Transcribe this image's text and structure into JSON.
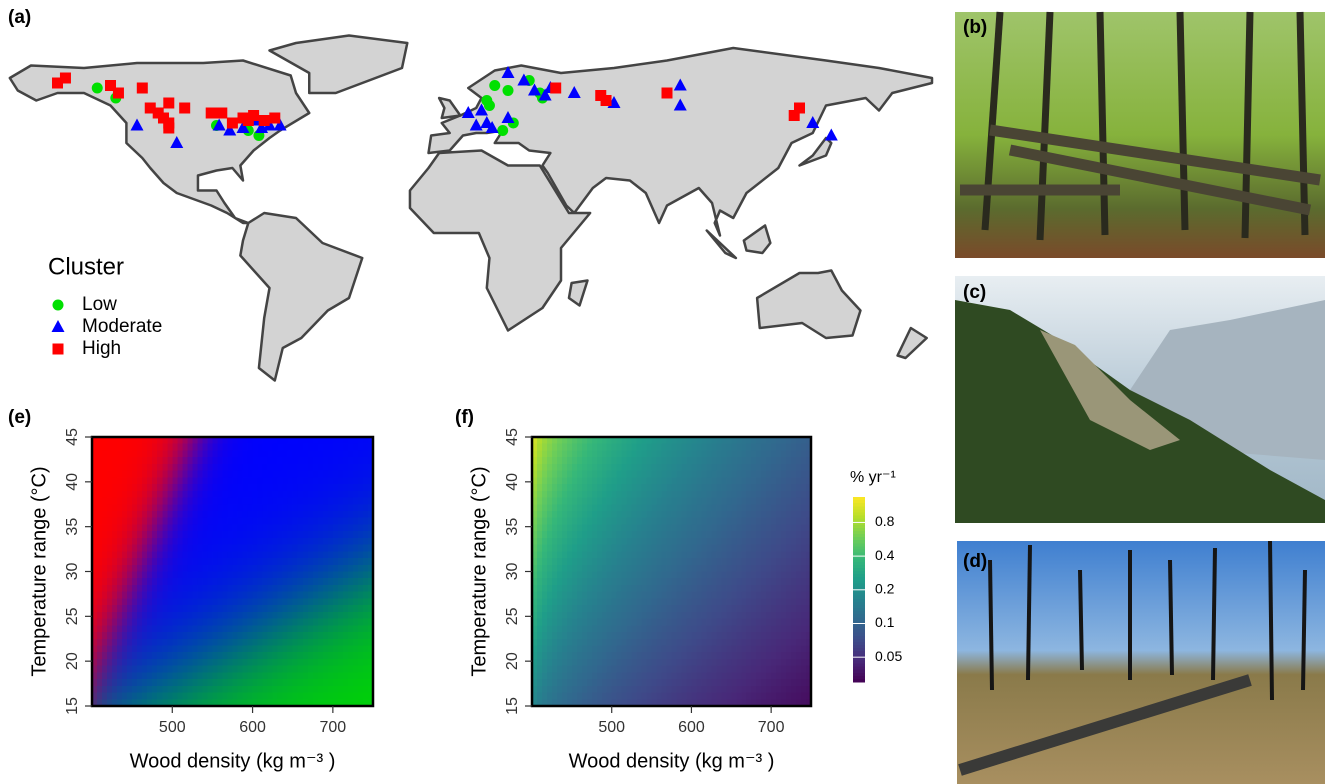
{
  "chart_data": [
    {
      "type": "scatter",
      "label": "(a)",
      "legend_title": "Cluster",
      "series": [
        {
          "name": "Low",
          "color": "#00e000",
          "marker": "circle",
          "x": [
            -135,
            -128,
            -78,
            -74,
            -90,
            15,
            20,
            12,
            13,
            28,
            33,
            18,
            22,
            32
          ],
          "y": [
            62,
            58,
            45,
            43,
            47,
            63,
            61,
            57,
            55,
            65,
            58,
            45,
            48,
            60
          ]
        },
        {
          "name": "Moderate",
          "color": "#0000ff",
          "marker": "triangle",
          "x": [
            -120,
            -105,
            -85,
            -80,
            -75,
            -73,
            -70,
            -66,
            -89,
            5,
            10,
            8,
            12,
            14,
            20,
            26,
            30,
            36,
            34,
            20,
            45,
            60,
            85,
            85,
            135,
            142
          ],
          "y": [
            47,
            40,
            45,
            46,
            49,
            46,
            47,
            47,
            47,
            52,
            53,
            47,
            48,
            46,
            50,
            65,
            61,
            62,
            59,
            68,
            60,
            56,
            63,
            55,
            48,
            43
          ]
        },
        {
          "name": "High",
          "color": "#ff0000",
          "marker": "square",
          "x": [
            -150,
            -147,
            -130,
            -127,
            -118,
            -108,
            -102,
            -115,
            -112,
            -110,
            -108,
            -108,
            -92,
            -88,
            -80,
            -78,
            -76,
            -72,
            -68,
            -84,
            38,
            55,
            57,
            80,
            128,
            130
          ],
          "y": [
            64,
            66,
            63,
            60,
            62,
            56,
            54,
            54,
            52,
            50,
            48,
            46,
            52,
            52,
            50,
            49,
            51,
            49,
            50,
            48,
            62,
            59,
            57,
            60,
            51,
            54
          ]
        }
      ]
    },
    {
      "type": "heatmap",
      "label": "(e)",
      "xlabel": "Wood density (kg m⁻³ )",
      "ylabel": "Temperature range (°C)",
      "xlim": [
        400,
        750
      ],
      "ylim": [
        15,
        45
      ],
      "xticks": [
        500,
        600,
        700
      ],
      "yticks": [
        15,
        20,
        25,
        30,
        35,
        40,
        45
      ]
    },
    {
      "type": "heatmap",
      "label": "(f)",
      "xlabel": "Wood density (kg m⁻³ )",
      "ylabel": "Temperature range (°C)",
      "xlim": [
        400,
        750
      ],
      "ylim": [
        15,
        45
      ],
      "xticks": [
        500,
        600,
        700
      ],
      "yticks": [
        15,
        20,
        25,
        30,
        35,
        40,
        45
      ],
      "colormap": "viridis",
      "colorbar": {
        "title": "% yr⁻¹",
        "log": true,
        "lim": [
          0.03,
          1.35
        ],
        "ticks": [
          0.05,
          0.1,
          0.2,
          0.4,
          0.8
        ]
      }
    }
  ],
  "photos": [
    {
      "label": "(b)"
    },
    {
      "label": "(c)"
    },
    {
      "label": "(d)"
    }
  ]
}
